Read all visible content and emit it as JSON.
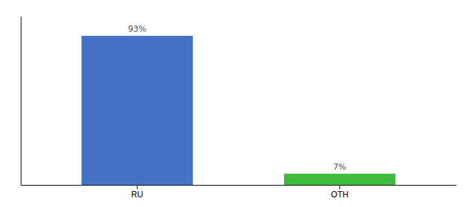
{
  "chart_data": {
    "type": "bar",
    "categories": [
      "RU",
      "OTH"
    ],
    "values": [
      93,
      7
    ],
    "value_labels": [
      "93%",
      "7%"
    ],
    "colors": [
      "#4472c4",
      "#3dbb3d"
    ],
    "ylim": [
      0,
      105
    ],
    "data_labels": true,
    "tick_labels": "x"
  }
}
